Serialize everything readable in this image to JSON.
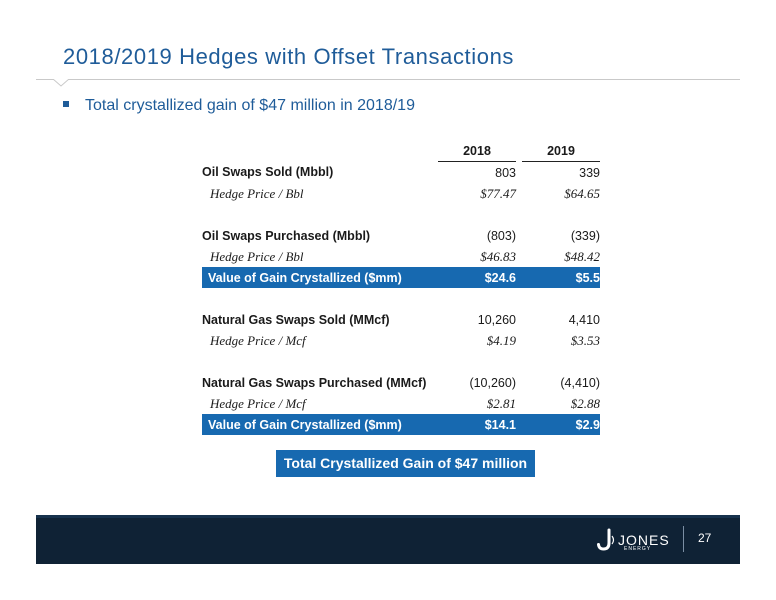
{
  "slide": {
    "title": "2018/2019 Hedges with Offset Transactions",
    "bullet": "Total crystallized gain of $47 million in 2018/19"
  },
  "table": {
    "years": [
      "2018",
      "2019"
    ],
    "rows": [
      {
        "label": "Oil Swaps Sold (Mbbl)",
        "v2018": "803",
        "v2019": "339"
      },
      {
        "label": "Hedge Price / Bbl",
        "v2018": "$77.47",
        "v2019": "$64.65"
      },
      {
        "label": "Oil Swaps Purchased (Mbbl)",
        "v2018": "(803)",
        "v2019": "(339)"
      },
      {
        "label": "Hedge Price / Bbl",
        "v2018": "$46.83",
        "v2019": "$48.42"
      },
      {
        "label": "Value of Gain Crystallized ($mm)",
        "v2018": "$24.6",
        "v2019": "$5.5"
      },
      {
        "label": "Natural Gas Swaps Sold (MMcf)",
        "v2018": "10,260",
        "v2019": "4,410"
      },
      {
        "label": "Hedge Price / Mcf",
        "v2018": "$4.19",
        "v2019": "$3.53"
      },
      {
        "label": "Natural Gas Swaps Purchased (MMcf)",
        "v2018": "(10,260)",
        "v2019": "(4,410)"
      },
      {
        "label": "Hedge Price / Mcf",
        "v2018": "$2.81",
        "v2019": "$2.88"
      },
      {
        "label": "Value of Gain Crystallized ($mm)",
        "v2018": "$14.1",
        "v2019": "$2.9"
      }
    ]
  },
  "summary": {
    "total_label": "Total Crystallized Gain of $47 million"
  },
  "footer": {
    "logo_text": "JONES",
    "logo_sub": "ENERGY",
    "page_number": "27"
  },
  "colors": {
    "title": "#1f5c99",
    "highlight": "#1769b0",
    "footer": "#0f2235"
  }
}
